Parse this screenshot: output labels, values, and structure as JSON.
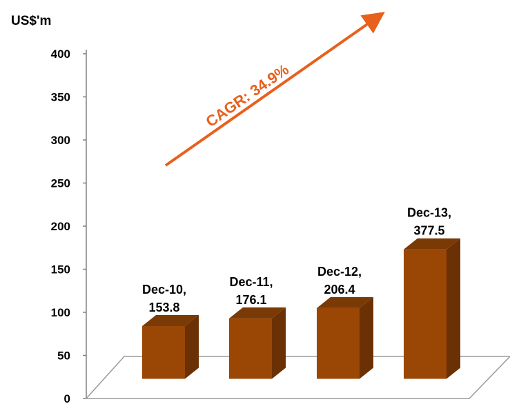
{
  "chart_data": {
    "type": "bar",
    "title": "",
    "ylabel": "US$'m",
    "xlabel": "",
    "categories": [
      "Dec-10",
      "Dec-11",
      "Dec-12",
      "Dec-13"
    ],
    "values": [
      153.8,
      176.1,
      206.4,
      377.5
    ],
    "data_labels": [
      {
        "category": "Dec-10,",
        "value": "153.8"
      },
      {
        "category": "Dec-11,",
        "value": "176.1"
      },
      {
        "category": "Dec-12,",
        "value": "206.4"
      },
      {
        "category": "Dec-13,",
        "value": "377.5"
      }
    ],
    "ylim": [
      0,
      400
    ],
    "yticks": [
      0,
      50,
      100,
      150,
      200,
      250,
      300,
      350,
      400
    ],
    "grid": false,
    "style": "3d-column",
    "annotation": {
      "text": "CAGR: 34.9%",
      "color": "#E8601C"
    },
    "colors": {
      "bar_front": "#9A4706",
      "bar_side": "#6B3104",
      "bar_top": "#7A3A06",
      "axis": "#808080"
    }
  }
}
